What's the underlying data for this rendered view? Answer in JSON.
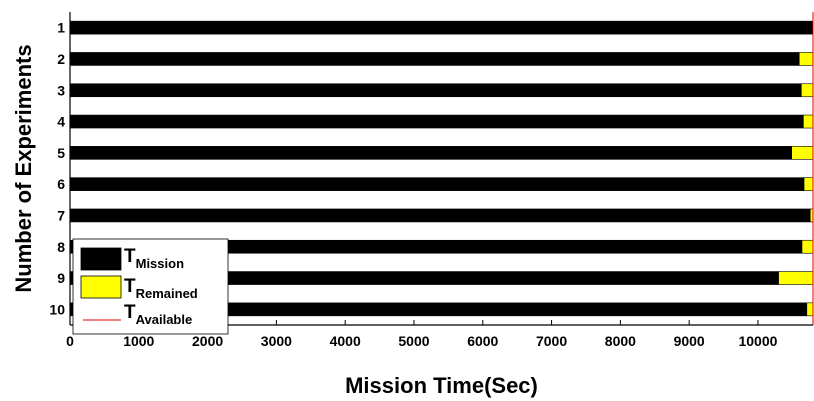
{
  "chart_data": {
    "type": "bar",
    "orientation": "horizontal",
    "stacked": true,
    "categories": [
      "1",
      "2",
      "3",
      "4",
      "5",
      "6",
      "7",
      "8",
      "9",
      "10"
    ],
    "series": [
      {
        "name": "Mission",
        "color": "#000000",
        "values": [
          10800,
          10600,
          10630,
          10660,
          10490,
          10670,
          10760,
          10640,
          10300,
          10710
        ]
      },
      {
        "name": "Remained",
        "color": "#ffff00",
        "values": [
          0,
          200,
          170,
          140,
          310,
          130,
          40,
          160,
          500,
          90
        ]
      }
    ],
    "available": {
      "name": "Available",
      "color": "#e00000",
      "value": 10800
    },
    "xlabel": "Mission Time(Sec)",
    "ylabel": "Number of Experiments",
    "xlim": [
      0,
      10800
    ],
    "xticks": [
      0,
      1000,
      2000,
      3000,
      4000,
      5000,
      6000,
      7000,
      8000,
      9000,
      10000
    ],
    "yaxis_reversed": true,
    "grid": false,
    "legend": {
      "position": "bottom-left",
      "entries": [
        {
          "main": "T",
          "sub": "Mission"
        },
        {
          "main": "T",
          "sub": "Remained"
        },
        {
          "main": "T",
          "sub": "Available"
        }
      ]
    }
  }
}
